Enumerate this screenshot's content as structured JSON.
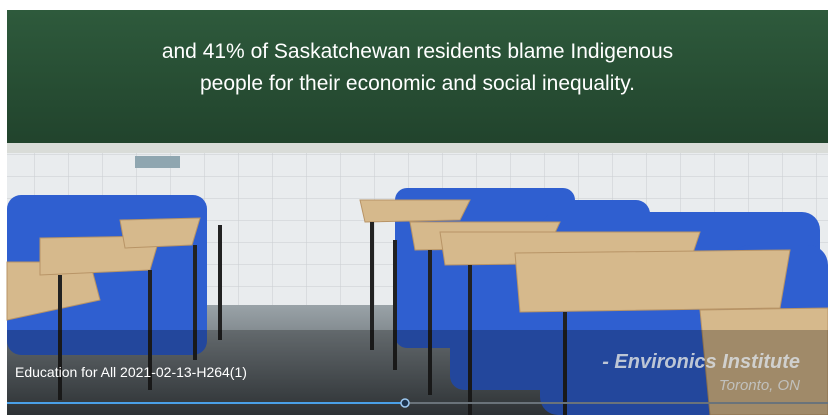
{
  "video": {
    "caption_lines": [
      "and 41% of Saskatchewan residents blame Indigenous",
      "people for their economic and social inequality."
    ],
    "source": "- Environics Institute",
    "location": "Toronto, ON",
    "file_title": "Education for All 2021-02-13-H264(1)"
  }
}
